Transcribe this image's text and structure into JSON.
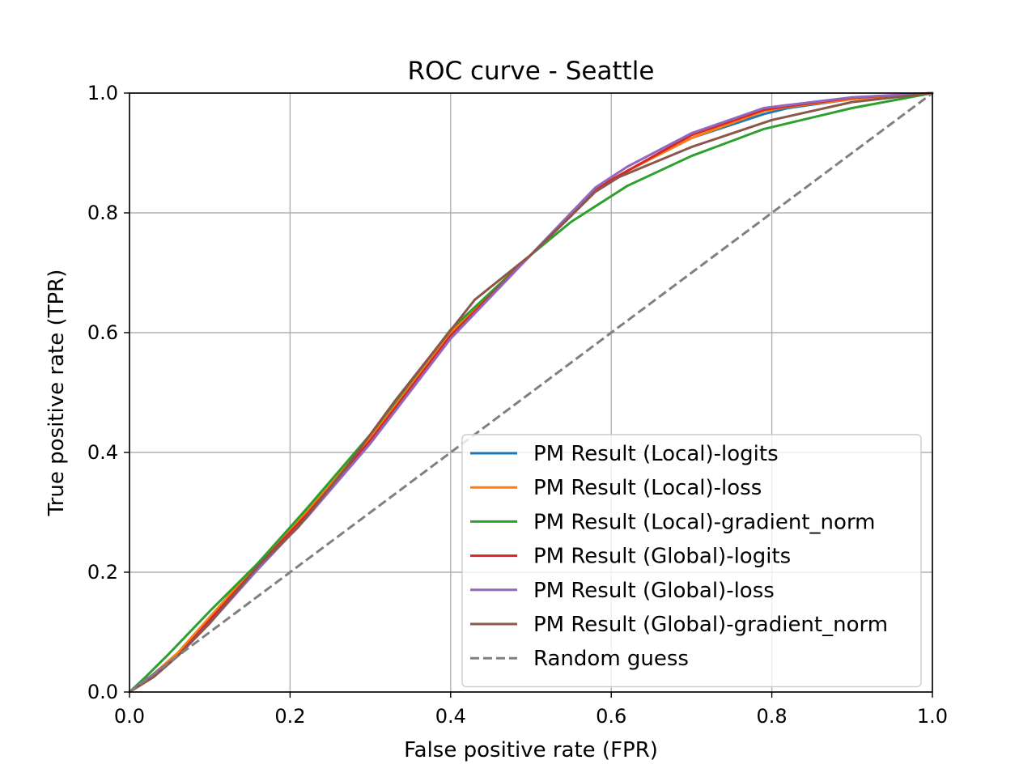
{
  "chart_data": {
    "type": "line",
    "title": "ROC curve - Seattle",
    "xlabel": "False positive rate (FPR)",
    "ylabel": "True positive rate (TPR)",
    "xlim": [
      0.0,
      1.0
    ],
    "ylim": [
      0.0,
      1.0
    ],
    "xticks": [
      "0.0",
      "0.2",
      "0.4",
      "0.6",
      "0.8",
      "1.0"
    ],
    "yticks": [
      "0.0",
      "0.2",
      "0.4",
      "0.6",
      "0.8",
      "1.0"
    ],
    "grid": true,
    "legend_position": "lower-right",
    "series": [
      {
        "name": "PM Result (Local)-logits",
        "color": "#1f77b4",
        "dash": "solid",
        "points": [
          [
            0.0,
            0.0
          ],
          [
            0.03,
            0.03
          ],
          [
            0.06,
            0.065
          ],
          [
            0.1,
            0.125
          ],
          [
            0.16,
            0.215
          ],
          [
            0.22,
            0.3
          ],
          [
            0.3,
            0.425
          ],
          [
            0.4,
            0.6
          ],
          [
            0.5,
            0.73
          ],
          [
            0.55,
            0.795
          ],
          [
            0.58,
            0.84
          ],
          [
            0.62,
            0.87
          ],
          [
            0.7,
            0.925
          ],
          [
            0.79,
            0.965
          ],
          [
            0.82,
            0.975
          ],
          [
            0.9,
            0.99
          ],
          [
            1.0,
            1.0
          ]
        ]
      },
      {
        "name": "PM Result (Local)-loss",
        "color": "#ff7f0e",
        "dash": "solid",
        "points": [
          [
            0.0,
            0.0
          ],
          [
            0.03,
            0.03
          ],
          [
            0.06,
            0.065
          ],
          [
            0.1,
            0.125
          ],
          [
            0.16,
            0.215
          ],
          [
            0.22,
            0.3
          ],
          [
            0.3,
            0.425
          ],
          [
            0.4,
            0.6
          ],
          [
            0.5,
            0.73
          ],
          [
            0.55,
            0.795
          ],
          [
            0.58,
            0.84
          ],
          [
            0.62,
            0.87
          ],
          [
            0.7,
            0.925
          ],
          [
            0.79,
            0.97
          ],
          [
            0.82,
            0.977
          ],
          [
            0.9,
            0.99
          ],
          [
            1.0,
            1.0
          ]
        ]
      },
      {
        "name": "PM Result (Local)-gradient_norm",
        "color": "#2ca02c",
        "dash": "solid",
        "points": [
          [
            0.0,
            0.0
          ],
          [
            0.02,
            0.025
          ],
          [
            0.05,
            0.065
          ],
          [
            0.1,
            0.135
          ],
          [
            0.16,
            0.215
          ],
          [
            0.22,
            0.305
          ],
          [
            0.3,
            0.43
          ],
          [
            0.4,
            0.605
          ],
          [
            0.5,
            0.73
          ],
          [
            0.55,
            0.785
          ],
          [
            0.62,
            0.845
          ],
          [
            0.7,
            0.895
          ],
          [
            0.79,
            0.94
          ],
          [
            0.9,
            0.975
          ],
          [
            1.0,
            1.0
          ]
        ]
      },
      {
        "name": "PM Result (Global)-logits",
        "color": "#d62728",
        "dash": "solid",
        "points": [
          [
            0.0,
            0.0
          ],
          [
            0.03,
            0.03
          ],
          [
            0.06,
            0.06
          ],
          [
            0.1,
            0.12
          ],
          [
            0.16,
            0.21
          ],
          [
            0.22,
            0.295
          ],
          [
            0.3,
            0.42
          ],
          [
            0.4,
            0.595
          ],
          [
            0.5,
            0.73
          ],
          [
            0.55,
            0.8
          ],
          [
            0.58,
            0.84
          ],
          [
            0.62,
            0.87
          ],
          [
            0.7,
            0.93
          ],
          [
            0.79,
            0.972
          ],
          [
            0.82,
            0.978
          ],
          [
            0.9,
            0.992
          ],
          [
            1.0,
            1.0
          ]
        ]
      },
      {
        "name": "PM Result (Global)-loss",
        "color": "#9467bd",
        "dash": "solid",
        "points": [
          [
            0.0,
            0.0
          ],
          [
            0.03,
            0.03
          ],
          [
            0.06,
            0.06
          ],
          [
            0.1,
            0.115
          ],
          [
            0.16,
            0.205
          ],
          [
            0.22,
            0.29
          ],
          [
            0.3,
            0.415
          ],
          [
            0.4,
            0.59
          ],
          [
            0.5,
            0.73
          ],
          [
            0.55,
            0.8
          ],
          [
            0.58,
            0.842
          ],
          [
            0.62,
            0.877
          ],
          [
            0.7,
            0.933
          ],
          [
            0.79,
            0.975
          ],
          [
            0.82,
            0.98
          ],
          [
            0.9,
            0.993
          ],
          [
            1.0,
            1.0
          ]
        ]
      },
      {
        "name": "PM Result (Global)-gradient_norm",
        "color": "#8c564b",
        "dash": "solid",
        "points": [
          [
            0.0,
            0.0
          ],
          [
            0.03,
            0.025
          ],
          [
            0.06,
            0.06
          ],
          [
            0.1,
            0.115
          ],
          [
            0.16,
            0.21
          ],
          [
            0.21,
            0.275
          ],
          [
            0.27,
            0.375
          ],
          [
            0.33,
            0.485
          ],
          [
            0.43,
            0.655
          ],
          [
            0.5,
            0.73
          ],
          [
            0.55,
            0.795
          ],
          [
            0.58,
            0.835
          ],
          [
            0.61,
            0.86
          ],
          [
            0.7,
            0.91
          ],
          [
            0.8,
            0.955
          ],
          [
            0.9,
            0.985
          ],
          [
            1.0,
            1.0
          ]
        ]
      },
      {
        "name": "Random guess",
        "color": "#808080",
        "dash": "dashed",
        "points": [
          [
            0.0,
            0.0
          ],
          [
            1.0,
            1.0
          ]
        ]
      }
    ]
  }
}
